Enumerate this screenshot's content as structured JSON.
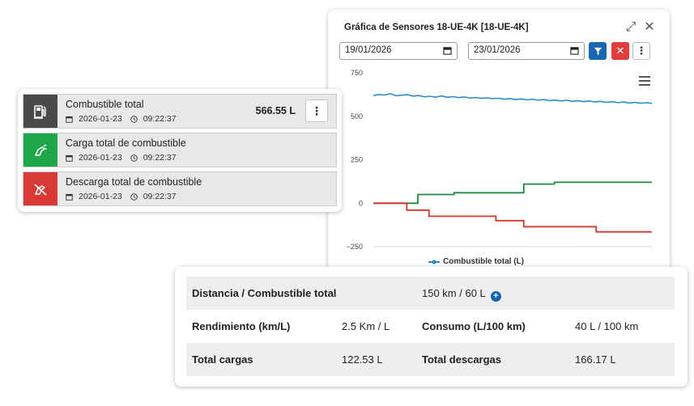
{
  "chart_panel": {
    "title": "Gráfica de Sensores 18-UE-4K [18-UE-4K]",
    "expand_icon": "⤢",
    "close_icon": "✕",
    "date_from": "19/01/2026",
    "date_to": "23/01/2026",
    "clear_icon": "✕",
    "more_icon": "⋮",
    "colors": {
      "filter": "#1967b3",
      "clear": "#e03d3d",
      "blue_series": "#2a8cc7",
      "green_series": "#1e8a3c",
      "red_series": "#d9372b"
    }
  },
  "chart_data": {
    "type": "line",
    "ylim": [
      -250,
      750
    ],
    "yticks": [
      "750",
      "500",
      "250",
      "0",
      "−250"
    ],
    "legend": [
      "Combustible total (L)"
    ],
    "series": [
      {
        "name": "Combustible total (L)",
        "color": "#2a8cc7",
        "values": [
          620,
          625,
          622,
          630,
          618,
          621,
          624,
          616,
          619,
          612,
          615,
          610,
          617,
          609,
          613,
          607,
          611,
          605,
          608,
          603,
          606,
          601,
          604,
          598,
          602,
          596,
          600,
          594,
          598,
          592,
          596,
          590,
          593,
          588,
          592,
          586,
          589,
          584,
          588,
          582,
          586,
          580,
          584,
          578,
          582,
          576,
          580,
          575,
          578,
          574
        ]
      },
      {
        "color": "#1e8a3c",
        "x": [
          0,
          0.16,
          0.16,
          0.29,
          0.29,
          0.54,
          0.54,
          0.65,
          0.65,
          1.0
        ],
        "values": [
          0,
          0,
          50,
          50,
          60,
          60,
          110,
          110,
          120,
          120
        ]
      },
      {
        "color": "#d9372b",
        "x": [
          0,
          0.12,
          0.12,
          0.2,
          0.2,
          0.44,
          0.44,
          0.54,
          0.54,
          0.8,
          0.8,
          1.0
        ],
        "values": [
          0,
          0,
          -40,
          -40,
          -75,
          -75,
          -100,
          -100,
          -135,
          -135,
          -165,
          -165
        ]
      }
    ]
  },
  "fuel_cards": [
    {
      "title": "Combustible total",
      "date": "2026-01-23",
      "time": "09:22:37",
      "value": "566.55 L",
      "icon": "fuel-pump-icon",
      "color": "#4a4a4d"
    },
    {
      "title": "Carga total de combustible",
      "date": "2026-01-23",
      "time": "09:22:37",
      "icon": "fuel-nozzle-icon",
      "color": "#1ea64a"
    },
    {
      "title": "Descarga total de combustible",
      "date": "2026-01-23",
      "time": "09:22:37",
      "icon": "fuel-nozzle-off-icon",
      "color": "#d93a35"
    }
  ],
  "fuel_menu_icon": "⋮",
  "summary": {
    "row1": {
      "label": "Distancia / Combustible total",
      "value": "150 km / 60 L",
      "plus": "+"
    },
    "row2": {
      "label": "Rendimiento (km/L)",
      "value": "2.5 Km / L",
      "label2": "Consumo (L/100 km)",
      "value2": "40 L / 100 km"
    },
    "row3": {
      "label": "Total cargas",
      "value": "122.53 L",
      "label2": "Total descargas",
      "value2": "166.17 L"
    }
  }
}
